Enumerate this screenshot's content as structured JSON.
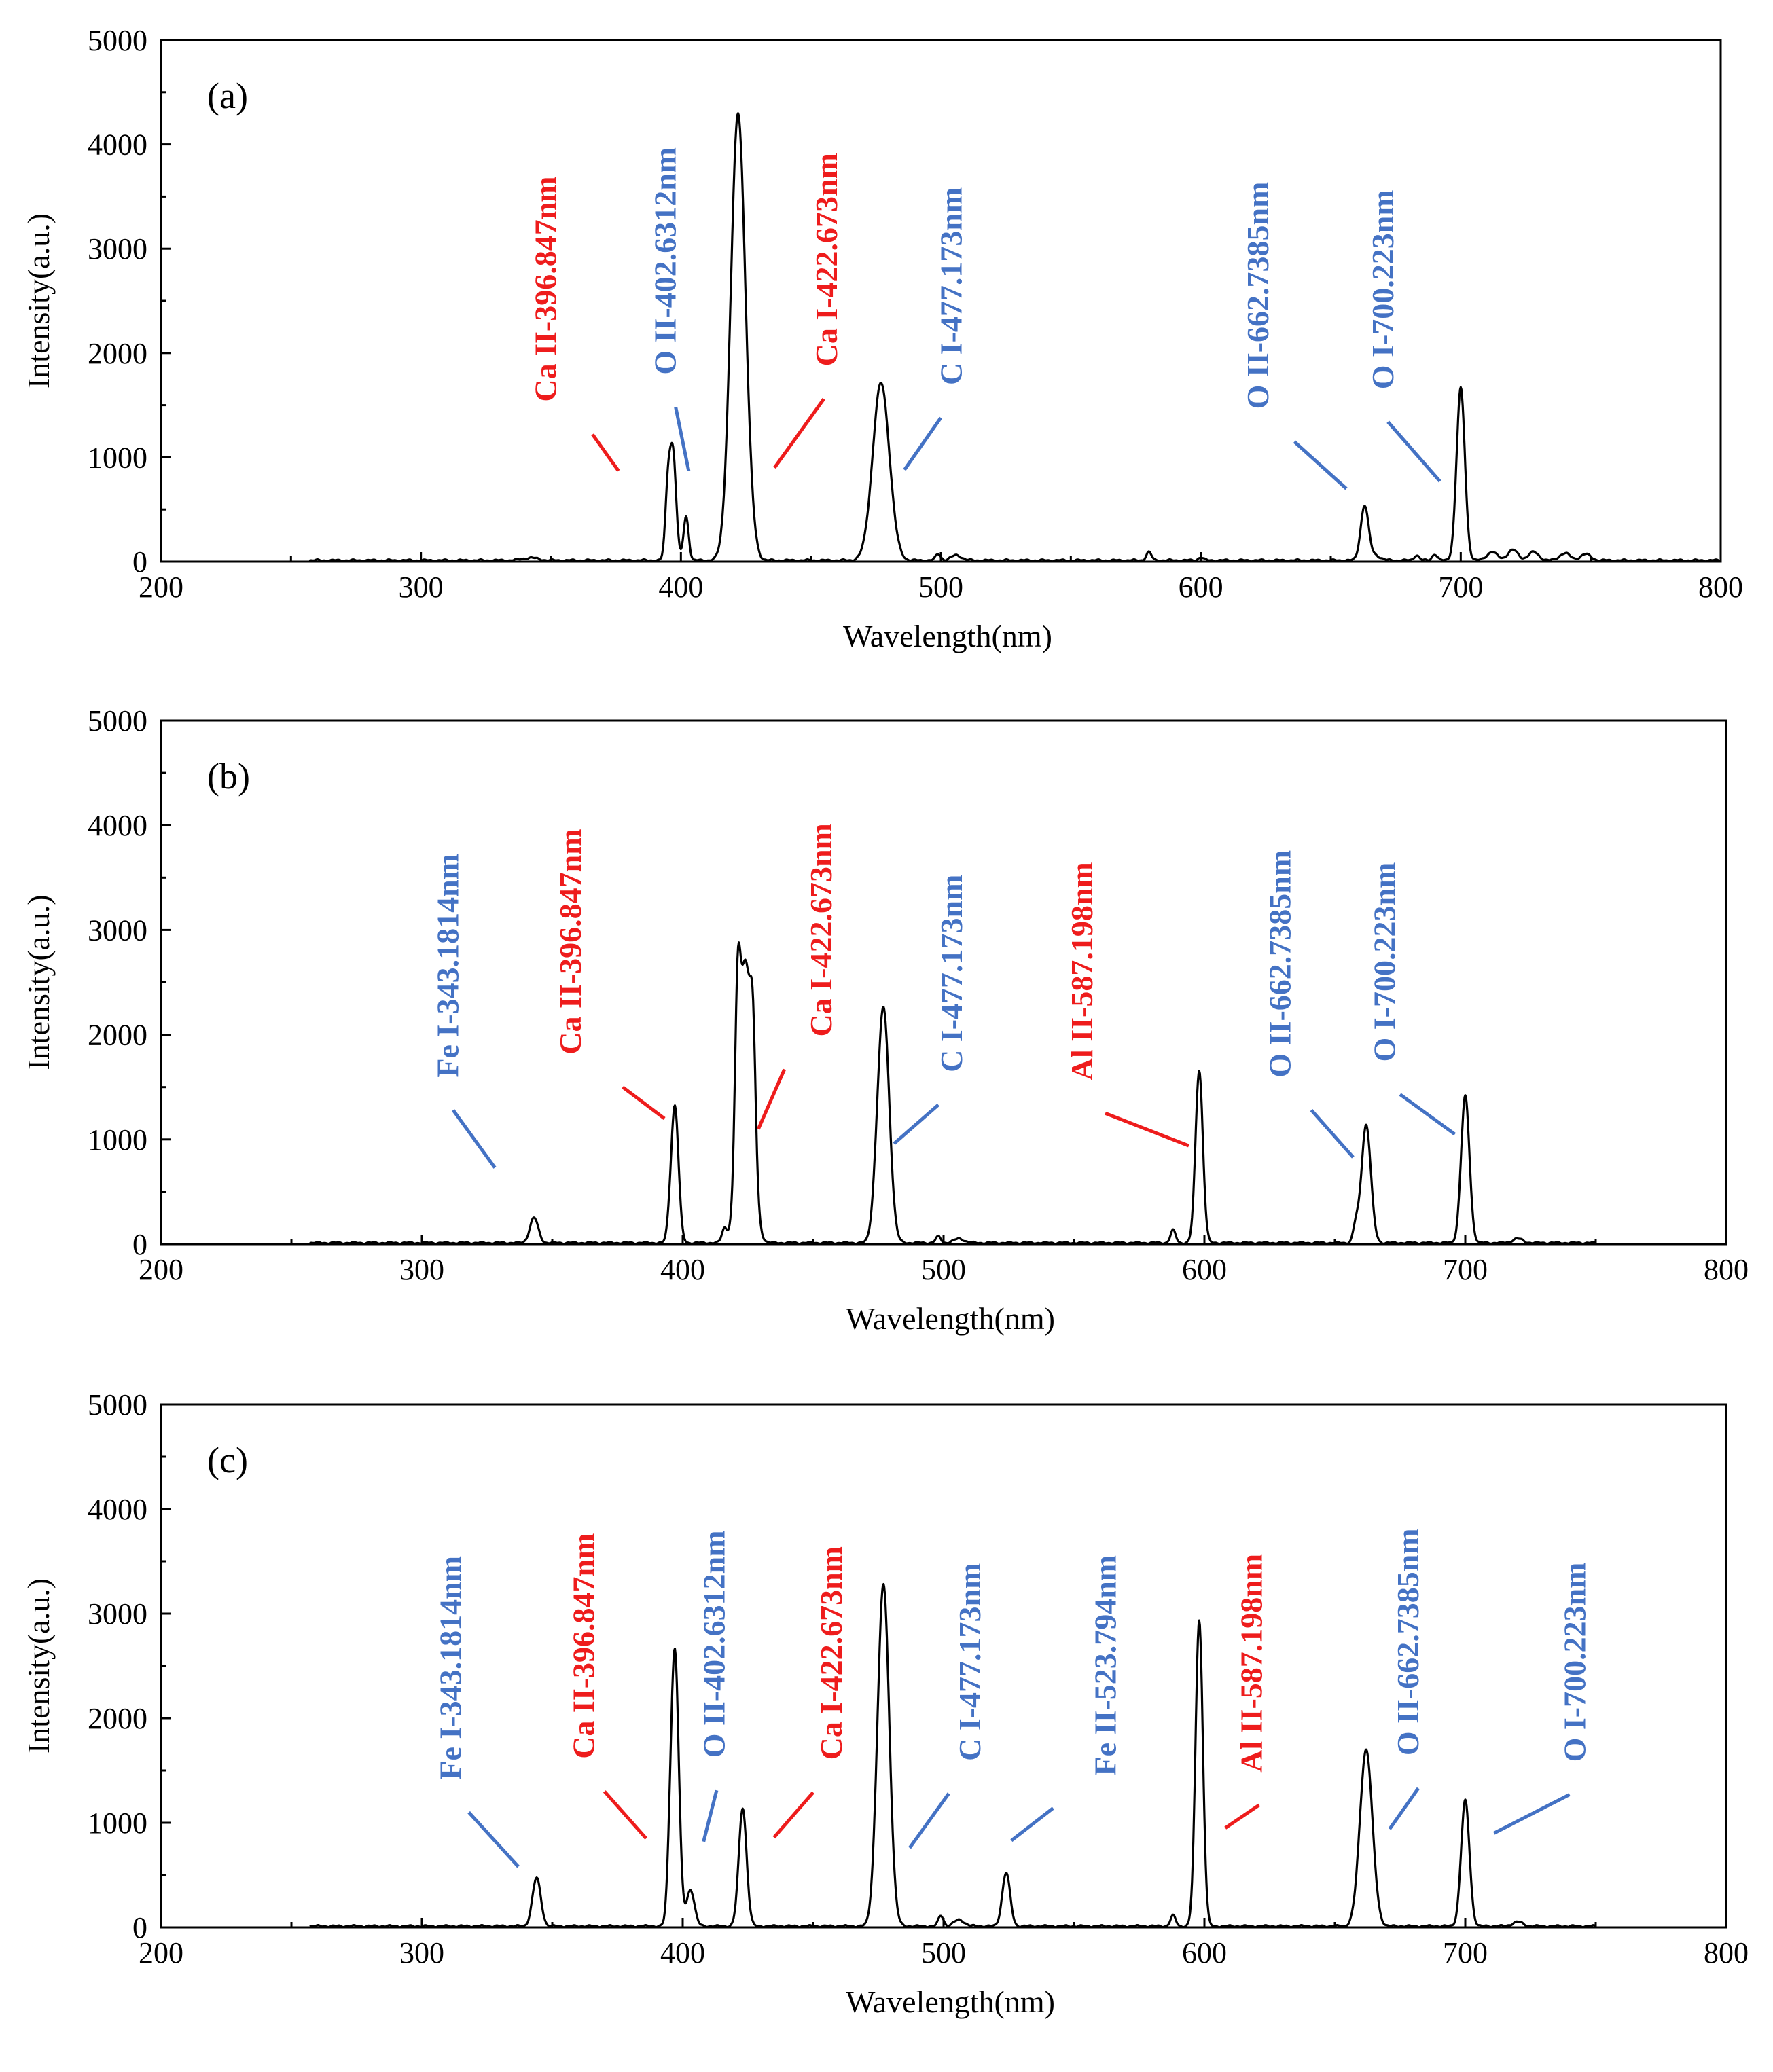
{
  "colors": {
    "red": "#ee1c1c",
    "blue": "#4472c4",
    "line": "#000000"
  },
  "chart_data": [
    {
      "type": "line",
      "panel_label": "(a)",
      "xlabel": "Wavelength(nm)",
      "ylabel": "Intensity(a.u.)",
      "xlim": [
        200,
        800
      ],
      "ylim": [
        0,
        5000
      ],
      "xticks": [
        "200",
        "300",
        "400",
        "500",
        "600",
        "700",
        "800"
      ],
      "yticks": [
        "0",
        "1000",
        "2000",
        "3000",
        "4000",
        "5000"
      ],
      "grid": false,
      "series": [
        {
          "baseline_start": 257,
          "baseline_end": 800,
          "peaks": [
            [
              342,
              25,
              3
            ],
            [
              395,
              650,
              1
            ],
            [
              397,
              1000,
              1.2
            ],
            [
              402,
              420,
              1
            ],
            [
              422,
              4280,
              2.8
            ],
            [
              427,
              80,
              2
            ],
            [
              477,
              1700,
              3.2
            ],
            [
              499,
              60,
              1
            ],
            [
              506,
              50,
              2
            ],
            [
              580,
              80,
              1
            ],
            [
              600,
              30,
              1
            ],
            [
              663,
              520,
              1.5
            ],
            [
              667,
              50,
              2
            ],
            [
              683,
              50,
              1
            ],
            [
              690,
              60,
              1
            ],
            [
              700,
              1650,
              1.6
            ],
            [
              712,
              80,
              2
            ],
            [
              720,
              100,
              2
            ],
            [
              728,
              80,
              2
            ],
            [
              740,
              70,
              2
            ],
            [
              748,
              60,
              2
            ]
          ]
        }
      ],
      "annotations": [
        {
          "text": "Ca II-396.847nm",
          "color": "red",
          "x": 352,
          "tick": [
            [
              366,
              1220
            ],
            [
              376,
              870
            ]
          ]
        },
        {
          "text": "O II-402.6312nm",
          "color": "blue",
          "x": 398,
          "tick": [
            [
              398,
              1480
            ],
            [
              403,
              870
            ]
          ]
        },
        {
          "text": "Ca I-422.673nm",
          "color": "red",
          "x": 460,
          "tick": [
            [
              455,
              1560
            ],
            [
              436,
              900
            ]
          ]
        },
        {
          "text": "C I-477.173nm",
          "color": "blue",
          "x": 508,
          "tick": [
            [
              500,
              1380
            ],
            [
              486,
              880
            ]
          ]
        },
        {
          "text": "O II-662.7385nm",
          "color": "blue",
          "x": 626,
          "tick": [
            [
              636,
              1150
            ],
            [
              656,
              700
            ]
          ]
        },
        {
          "text": "O I-700.223nm",
          "color": "blue",
          "x": 674,
          "tick": [
            [
              672,
              1340
            ],
            [
              692,
              770
            ]
          ]
        }
      ]
    },
    {
      "type": "line",
      "panel_label": "(b)",
      "xlabel": "Wavelength(nm)",
      "ylabel": "Intensity(a.u.)",
      "xlim": [
        200,
        800
      ],
      "ylim": [
        0,
        5000
      ],
      "xticks": [
        "200",
        "300",
        "400",
        "500",
        "600",
        "700",
        "800"
      ],
      "yticks": [
        "0",
        "1000",
        "2000",
        "3000",
        "4000",
        "5000"
      ],
      "grid": false,
      "series": [
        {
          "baseline_start": 257,
          "baseline_end": 750,
          "peaks": [
            [
              343,
              240,
              1.6
            ],
            [
              395,
              100,
              1
            ],
            [
              397,
              1300,
              1.4
            ],
            [
              416,
              130,
              1
            ],
            [
              421,
              1400,
              1
            ],
            [
              424,
              2680,
              2.5
            ],
            [
              427,
              1000,
              1
            ],
            [
              474,
              150,
              1.5
            ],
            [
              477,
              2230,
              2.2
            ],
            [
              498,
              60,
              1
            ],
            [
              506,
              40,
              2
            ],
            [
              588,
              120,
              1
            ],
            [
              598,
              1650,
              1.4
            ],
            [
              658,
              150,
              1
            ],
            [
              662,
              1130,
              1.8
            ],
            [
              700,
              1400,
              1.6
            ],
            [
              720,
              40,
              2
            ]
          ]
        }
      ],
      "annotations": [
        {
          "text": "Fe I-343.1814nm",
          "color": "blue",
          "x": 314,
          "tick": [
            [
              312,
              1280
            ],
            [
              328,
              730
            ]
          ]
        },
        {
          "text": "Ca II-396.847nm",
          "color": "red",
          "x": 361,
          "tick": [
            [
              377,
              1500
            ],
            [
              393,
              1200
            ]
          ]
        },
        {
          "text": "Ca I-422.673nm",
          "color": "red",
          "x": 457,
          "tick": [
            [
              439,
              1670
            ],
            [
              429,
              1100
            ]
          ]
        },
        {
          "text": "C I-477.173nm",
          "color": "blue",
          "x": 507,
          "tick": [
            [
              498,
              1330
            ],
            [
              481,
              960
            ]
          ]
        },
        {
          "text": "Al  II-587.198nm",
          "color": "red",
          "x": 557,
          "tick": [
            [
              562,
              1250
            ],
            [
              594,
              940
            ]
          ]
        },
        {
          "text": "O II-662.7385nm",
          "color": "blue",
          "x": 633,
          "tick": [
            [
              641,
              1280
            ],
            [
              657,
              830
            ]
          ]
        },
        {
          "text": "O I-700.223nm",
          "color": "blue",
          "x": 673,
          "tick": [
            [
              675,
              1430
            ],
            [
              696,
              1050
            ]
          ]
        }
      ]
    },
    {
      "type": "line",
      "panel_label": "(c)",
      "xlabel": "Wavelength(nm)",
      "ylabel": "Intensity(a.u.)",
      "xlim": [
        200,
        800
      ],
      "ylim": [
        0,
        5000
      ],
      "xticks": [
        "200",
        "300",
        "400",
        "500",
        "600",
        "700",
        "800"
      ],
      "yticks": [
        "0",
        "1000",
        "2000",
        "3000",
        "4000",
        "5000"
      ],
      "grid": false,
      "series": [
        {
          "baseline_start": 257,
          "baseline_end": 750,
          "peaks": [
            [
              344,
              460,
              1.6
            ],
            [
              395,
              250,
              1
            ],
            [
              397,
              2620,
              1.5
            ],
            [
              403,
              350,
              1.5
            ],
            [
              423,
              1130,
              1.5
            ],
            [
              474,
              130,
              1.5
            ],
            [
              477,
              3250,
              2.2
            ],
            [
              499,
              100,
              1
            ],
            [
              506,
              60,
              2
            ],
            [
              524,
              510,
              1.5
            ],
            [
              588,
              100,
              1
            ],
            [
              598,
              2930,
              1.4
            ],
            [
              662,
              1690,
              2.4
            ],
            [
              700,
              1200,
              1.6
            ],
            [
              720,
              40,
              2
            ]
          ]
        }
      ],
      "annotations": [
        {
          "text": "Fe I-343.1814nm",
          "color": "blue",
          "x": 315,
          "tick": [
            [
              318,
              1100
            ],
            [
              337,
              580
            ]
          ]
        },
        {
          "text": "Ca II-396.847nm",
          "color": "red",
          "x": 366,
          "tick": [
            [
              370,
              1300
            ],
            [
              386,
              850
            ]
          ]
        },
        {
          "text": "O II-402.6312nm",
          "color": "blue",
          "x": 416,
          "tick": [
            [
              413,
              1310
            ],
            [
              408,
              820
            ]
          ]
        },
        {
          "text": "Ca I-422.673nm",
          "color": "red",
          "x": 461,
          "tick": [
            [
              450,
              1290
            ],
            [
              435,
              860
            ]
          ]
        },
        {
          "text": "C I-477.173nm",
          "color": "blue",
          "x": 514,
          "tick": [
            [
              502,
              1280
            ],
            [
              487,
              760
            ]
          ]
        },
        {
          "text": "Fe II-523.794nm",
          "color": "blue",
          "x": 566,
          "tick": [
            [
              542,
              1140
            ],
            [
              526,
              830
            ]
          ]
        },
        {
          "text": "Al  II-587.198nm",
          "color": "red",
          "x": 622,
          "tick": [
            [
              621,
              1170
            ],
            [
              608,
              950
            ]
          ]
        },
        {
          "text": "O II-662.7385nm",
          "color": "blue",
          "x": 682,
          "tick": [
            [
              682,
              1330
            ],
            [
              671,
              940
            ]
          ]
        },
        {
          "text": "O I-700.223nm",
          "color": "blue",
          "x": 746,
          "tick": [
            [
              740,
              1270
            ],
            [
              711,
              900
            ]
          ]
        }
      ]
    }
  ]
}
